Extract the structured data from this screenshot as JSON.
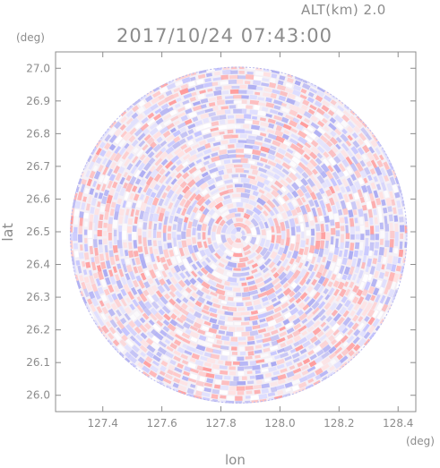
{
  "header": {
    "altitude": "ALT(km) 2.0",
    "timestamp": "2017/10/24 07:43:00"
  },
  "chart_data": {
    "type": "heatmap",
    "subtype": "radar-ppi",
    "x_unit": "(deg)",
    "y_unit": "(deg)",
    "xlabel": "lon",
    "ylabel": "lat",
    "xlim": [
      127.24,
      128.46
    ],
    "ylim": [
      25.95,
      27.05
    ],
    "xticks": [
      "127.4",
      "127.6",
      "127.8",
      "128.0",
      "128.2",
      "128.4"
    ],
    "yticks": [
      "26.0",
      "26.1",
      "26.2",
      "26.3",
      "26.4",
      "26.5",
      "26.6",
      "26.7",
      "26.8",
      "26.9",
      "27.0"
    ],
    "radar_center": {
      "lon": 127.86,
      "lat": 26.49
    },
    "radar_range_deg_lat": 0.515,
    "colors": {
      "positive": "#ff9999",
      "negative": "#9999ff",
      "zero": "#ffffff",
      "axis": "#8c8c8c"
    }
  }
}
